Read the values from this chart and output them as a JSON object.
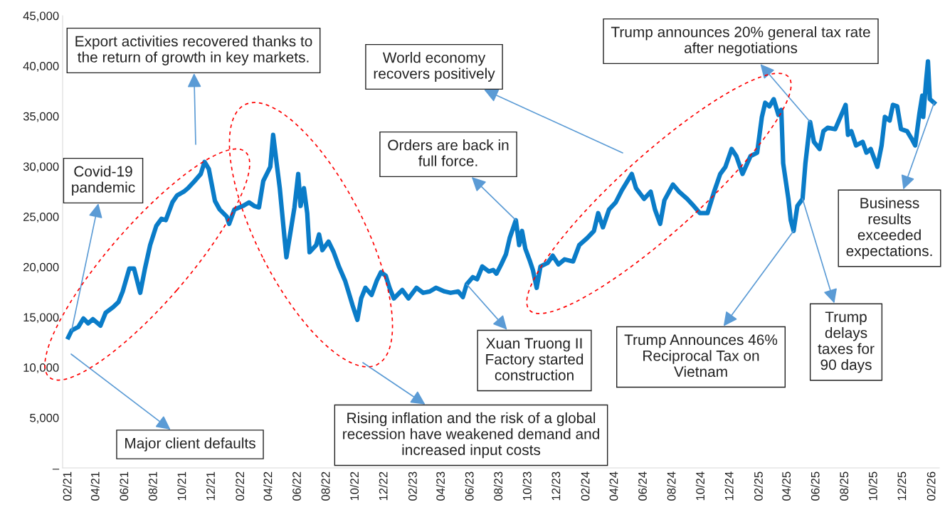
{
  "chart_data": {
    "type": "line",
    "xlim": [
      "2021-01-20",
      "2026-02-16"
    ],
    "ylim": [
      0,
      45000
    ],
    "xticks": [
      {
        "value": "2021-02-01",
        "label": "02/21"
      },
      {
        "value": "2021-04-01",
        "label": "04/21"
      },
      {
        "value": "2021-06-01",
        "label": "06/21"
      },
      {
        "value": "2021-08-01",
        "label": "08/21"
      },
      {
        "value": "2021-10-01",
        "label": "10/21"
      },
      {
        "value": "2021-12-01",
        "label": "12/21"
      },
      {
        "value": "2022-02-01",
        "label": "02/22"
      },
      {
        "value": "2022-04-01",
        "label": "04/22"
      },
      {
        "value": "2022-06-01",
        "label": "06/22"
      },
      {
        "value": "2022-08-01",
        "label": "08/22"
      },
      {
        "value": "2022-10-01",
        "label": "10/22"
      },
      {
        "value": "2022-12-01",
        "label": "12/22"
      },
      {
        "value": "2023-02-01",
        "label": "02/23"
      },
      {
        "value": "2023-04-01",
        "label": "04/23"
      },
      {
        "value": "2023-06-01",
        "label": "06/23"
      },
      {
        "value": "2023-08-01",
        "label": "08/23"
      },
      {
        "value": "2023-10-01",
        "label": "10/23"
      },
      {
        "value": "2023-12-01",
        "label": "12/23"
      },
      {
        "value": "2024-02-01",
        "label": "02/24"
      },
      {
        "value": "2024-04-01",
        "label": "04/24"
      },
      {
        "value": "2024-06-01",
        "label": "06/24"
      },
      {
        "value": "2024-08-01",
        "label": "08/24"
      },
      {
        "value": "2024-10-01",
        "label": "10/24"
      },
      {
        "value": "2024-12-01",
        "label": "12/24"
      },
      {
        "value": "2025-02-01",
        "label": "02/25"
      },
      {
        "value": "2025-04-01",
        "label": "04/25"
      },
      {
        "value": "2025-06-01",
        "label": "06/25"
      },
      {
        "value": "2025-08-01",
        "label": "08/25"
      },
      {
        "value": "2025-10-01",
        "label": "10/25"
      },
      {
        "value": "2025-12-01",
        "label": "12/25"
      },
      {
        "value": "2026-02-01",
        "label": "02/26"
      }
    ],
    "yticks": [
      {
        "value": 0,
        "label": "–"
      },
      {
        "value": 5000,
        "label": "5,000"
      },
      {
        "value": 10000,
        "label": "10,000"
      },
      {
        "value": 15000,
        "label": "15,000"
      },
      {
        "value": 20000,
        "label": "20,000"
      },
      {
        "value": 25000,
        "label": "25,000"
      },
      {
        "value": 30000,
        "label": "30,000"
      },
      {
        "value": 35000,
        "label": "35,000"
      },
      {
        "value": 40000,
        "label": "40,000"
      },
      {
        "value": 45000,
        "label": "45,000"
      }
    ],
    "grid": false,
    "legend": false,
    "marker": "none",
    "line_style": "solid",
    "x": [
      "2021-02-01",
      "2021-02-08",
      "2021-02-22",
      "2021-03-05",
      "2021-03-15",
      "2021-03-25",
      "2021-04-10",
      "2021-04-21",
      "2021-05-07",
      "2021-05-18",
      "2021-05-27",
      "2021-06-10",
      "2021-06-20",
      "2021-07-03",
      "2021-07-13",
      "2021-07-24",
      "2021-08-06",
      "2021-08-17",
      "2021-08-26",
      "2021-09-09",
      "2021-09-19",
      "2021-10-03",
      "2021-10-12",
      "2021-10-26",
      "2021-11-08",
      "2021-11-16",
      "2021-11-25",
      "2021-12-08",
      "2021-12-18",
      "2022-01-02",
      "2022-01-07",
      "2022-01-18",
      "2022-02-05",
      "2022-02-18",
      "2022-03-01",
      "2022-03-11",
      "2022-03-20",
      "2022-04-04",
      "2022-04-10",
      "2022-04-17",
      "2022-04-24",
      "2022-05-04",
      "2022-05-08",
      "2022-05-17",
      "2022-05-25",
      "2022-06-02",
      "2022-06-07",
      "2022-06-14",
      "2022-06-21",
      "2022-06-26",
      "2022-07-10",
      "2022-07-16",
      "2022-07-23",
      "2022-08-05",
      "2022-08-16",
      "2022-08-27",
      "2022-09-09",
      "2022-09-16",
      "2022-09-25",
      "2022-10-05",
      "2022-10-13",
      "2022-10-22",
      "2022-11-04",
      "2022-11-15",
      "2022-11-24",
      "2022-12-04",
      "2022-12-12",
      "2022-12-21",
      "2023-01-08",
      "2023-01-21",
      "2023-02-07",
      "2023-02-21",
      "2023-03-07",
      "2023-03-20",
      "2023-04-07",
      "2023-04-20",
      "2023-05-06",
      "2023-05-16",
      "2023-05-24",
      "2023-06-06",
      "2023-06-15",
      "2023-06-26",
      "2023-07-10",
      "2023-07-19",
      "2023-07-26",
      "2023-08-05",
      "2023-08-15",
      "2023-08-23",
      "2023-09-05",
      "2023-09-12",
      "2023-09-18",
      "2023-09-25",
      "2023-10-05",
      "2023-10-11",
      "2023-10-19",
      "2023-10-27",
      "2023-11-11",
      "2023-11-22",
      "2023-12-04",
      "2023-12-17",
      "2024-01-04",
      "2024-01-17",
      "2024-02-03",
      "2024-02-17",
      "2024-02-26",
      "2024-03-07",
      "2024-03-20",
      "2024-04-03",
      "2024-04-16",
      "2024-05-07",
      "2024-05-16",
      "2024-06-02",
      "2024-06-16",
      "2024-06-25",
      "2024-07-06",
      "2024-07-15",
      "2024-08-02",
      "2024-08-15",
      "2024-09-01",
      "2024-09-15",
      "2024-09-28",
      "2024-10-14",
      "2024-10-28",
      "2024-11-10",
      "2024-11-21",
      "2024-12-04",
      "2024-12-14",
      "2024-12-27",
      "2025-01-13",
      "2025-01-27",
      "2025-02-06",
      "2025-02-13",
      "2025-02-22",
      "2025-03-03",
      "2025-03-13",
      "2025-03-19",
      "2025-03-23",
      "2025-04-03",
      "2025-04-08",
      "2025-04-14",
      "2025-04-22",
      "2025-05-03",
      "2025-05-09",
      "2025-05-19",
      "2025-05-27",
      "2025-06-08",
      "2025-06-16",
      "2025-06-25",
      "2025-07-11",
      "2025-07-22",
      "2025-08-02",
      "2025-08-07",
      "2025-08-14",
      "2025-08-24",
      "2025-09-07",
      "2025-09-15",
      "2025-09-24",
      "2025-10-08",
      "2025-10-17",
      "2025-10-24",
      "2025-11-03",
      "2025-11-10",
      "2025-11-19",
      "2025-11-27",
      "2025-12-10",
      "2025-12-19",
      "2025-12-27",
      "2026-01-05",
      "2026-01-11",
      "2026-01-13",
      "2026-01-19",
      "2026-01-23",
      "2026-01-27",
      "2026-02-05"
    ],
    "series": [
      {
        "color": "#0a7cc8",
        "values": [
          13000,
          13670,
          14020,
          14870,
          14380,
          14800,
          14160,
          15440,
          16000,
          16500,
          17560,
          19830,
          19830,
          17420,
          19830,
          22170,
          24080,
          24790,
          24650,
          26420,
          27120,
          27480,
          27830,
          28540,
          29250,
          30450,
          29740,
          26560,
          25710,
          25000,
          24290,
          25710,
          26060,
          26420,
          26060,
          25920,
          28540,
          29960,
          33140,
          30450,
          27830,
          22880,
          20960,
          23580,
          25920,
          29250,
          26060,
          27830,
          25350,
          21460,
          22170,
          23230,
          21670,
          22520,
          21460,
          20040,
          18630,
          17560,
          16150,
          14730,
          16860,
          17920,
          17210,
          18630,
          19480,
          19120,
          17920,
          16860,
          17700,
          16860,
          17920,
          17420,
          17560,
          17920,
          17560,
          17420,
          17560,
          17000,
          18270,
          18980,
          18770,
          20040,
          19550,
          19690,
          19330,
          20250,
          21250,
          22880,
          24650,
          22170,
          23580,
          21810,
          20540,
          19690,
          17920,
          20040,
          20390,
          21110,
          20250,
          20750,
          20540,
          22170,
          22880,
          23580,
          25350,
          23940,
          25710,
          26420,
          27620,
          29250,
          27830,
          26770,
          27480,
          25710,
          24290,
          26630,
          28190,
          27480,
          26770,
          26060,
          25350,
          25350,
          27480,
          29250,
          29960,
          31730,
          31020,
          29250,
          31020,
          31370,
          34920,
          36330,
          35980,
          36690,
          35130,
          35630,
          30310,
          26770,
          24650,
          23580,
          26060,
          26770,
          30310,
          34420,
          32440,
          31730,
          33500,
          33850,
          33710,
          34920,
          36120,
          33140,
          33500,
          32080,
          32440,
          31370,
          31730,
          29960,
          32080,
          34920,
          34560,
          36120,
          35980,
          33710,
          33500,
          32790,
          32080,
          35270,
          37040,
          34920,
          38450,
          40440,
          36690,
          36330
        ]
      }
    ],
    "annotations": [
      "Export activities recovered thanks to\nthe return of growth in key markets.",
      {
        "text": "Covid-19\npandemic",
        "x": "2021-02-08",
        "y": 13670
      },
      "Major client defaults",
      "Rising inflation and the risk of a global\nrecession have weakened demand and\nincreased input costs",
      "World economy\nrecovers positively",
      {
        "text": "Orders are back in\nfull force.",
        "x": "2023-09-05",
        "y": 24650
      },
      {
        "text": "Xuan Truong II\nFactory started\nconstruction",
        "x": "2023-05-24",
        "y": 18270
      },
      {
        "text": "Trump announces 20% general tax rate\nafter negotiations",
        "x": "2025-05-19",
        "y": 34420
      },
      {
        "text": "Trump Announces 46%\nReciprocal Tax on\nVietnam",
        "x": "2025-04-14",
        "y": 23580
      },
      {
        "text": "Trump\ndelays\ntaxes for\n90 days",
        "x": "2025-05-03",
        "y": 26770
      },
      {
        "text": "Business\nresults\nexceeded\nexpectations.",
        "x": "2026-02-05",
        "y": 36330
      }
    ]
  }
}
